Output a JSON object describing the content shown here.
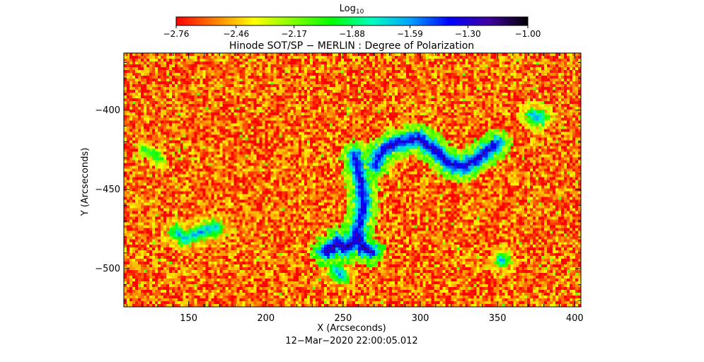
{
  "chart_data": {
    "type": "heatmap",
    "title": "Hinode SOT/SP − MERLIN : Degree of Polarization",
    "xlabel": "X (Arcseconds)",
    "ylabel": "Y (Arcseconds)",
    "footer": "12−Mar−2020 22:00:05.012",
    "xlim": [
      108,
      404
    ],
    "ylim": [
      -524,
      -364
    ],
    "x_ticks": [
      150,
      200,
      250,
      300,
      350,
      400
    ],
    "y_ticks": [
      -400,
      -450,
      -500
    ],
    "colorbar": {
      "label_main": "Log",
      "label_sub": "10",
      "range": [
        -2.76,
        -1.0
      ],
      "ticks": [
        -2.76,
        -2.46,
        -2.17,
        -1.88,
        -1.59,
        -1.3,
        -1.0
      ],
      "tick_labels": [
        "−2.76",
        "−2.46",
        "−2.17",
        "−1.88",
        "−1.59",
        "−1.30",
        "−1.00"
      ],
      "colors": [
        "#ff0000",
        "#ff8000",
        "#ffff00",
        "#80ff00",
        "#00ff00",
        "#00ffc0",
        "#00a0ff",
        "#0000ff",
        "#4000a0",
        "#000000"
      ]
    },
    "background_level": -2.6,
    "features": [
      {
        "name": "network lane (upper right)",
        "x": [
          270,
          275,
          283,
          290,
          298,
          303,
          310,
          318,
          327,
          335,
          342,
          348
        ],
        "y": [
          -433,
          -425,
          -420,
          -419,
          -417,
          -421,
          -425,
          -433,
          -435,
          -430,
          -425,
          -421
        ],
        "level": -1.25
      },
      {
        "name": "network lane (central)",
        "x": [
          257,
          260,
          262,
          262,
          260,
          258,
          256
        ],
        "y": [
          -428,
          -440,
          -452,
          -463,
          -470,
          -478,
          -483
        ],
        "level": -1.3
      },
      {
        "name": "patch near center",
        "x": [
          238,
          242,
          246,
          250,
          254,
          258,
          262,
          266
        ],
        "y": [
          -489,
          -486,
          -482,
          -487,
          -484,
          -478,
          -486,
          -488
        ],
        "level": -1.2
      },
      {
        "name": "feature left",
        "x": [
          141,
          146,
          152,
          160,
          167
        ],
        "y": [
          -476,
          -480,
          -478,
          -475,
          -473
        ],
        "level": -1.6
      },
      {
        "name": "small patch left top",
        "x": [
          120,
          125,
          130
        ],
        "y": [
          -424,
          -426,
          -430
        ],
        "level": -1.9
      },
      {
        "name": "small patch right",
        "x": [
          372,
          376
        ],
        "y": [
          -402,
          -404
        ],
        "level": -1.5
      },
      {
        "name": "small patch bottom",
        "x": [
          245,
          248
        ],
        "y": [
          -500,
          -504
        ],
        "level": -1.6
      },
      {
        "name": "small patch right bottom",
        "x": [
          352
        ],
        "y": [
          -494
        ],
        "level": -1.6
      }
    ]
  }
}
